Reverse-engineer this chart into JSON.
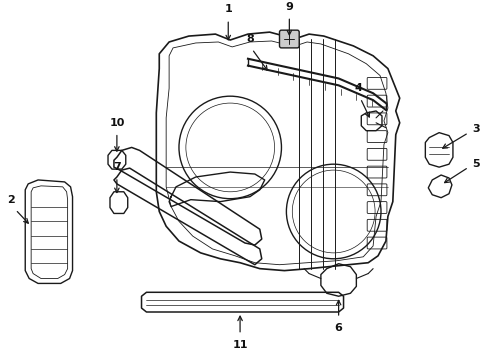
{
  "bg_color": "#ffffff",
  "line_color": "#1a1a1a",
  "text_color": "#111111",
  "fig_width": 4.9,
  "fig_height": 3.6,
  "dpi": 100
}
